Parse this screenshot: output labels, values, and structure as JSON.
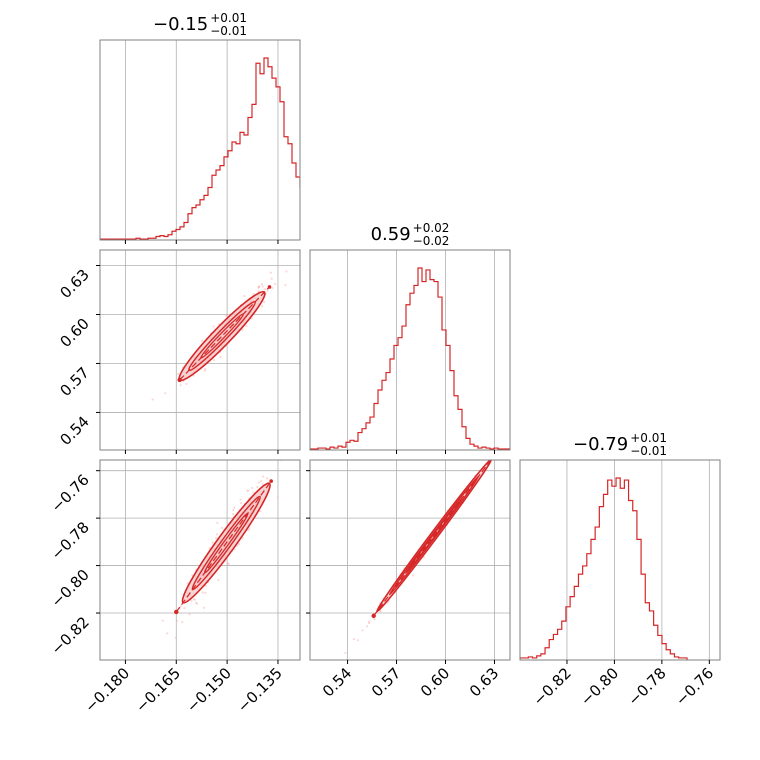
{
  "colors": {
    "main": "#d62728",
    "fill": "#f4c2c2",
    "scatter": "#f7b6b6",
    "grid": "#b0b0b0",
    "frame": "#808080"
  },
  "titles": [
    {
      "main": "−0.15",
      "sup": "+0.01",
      "sub": "−0.01"
    },
    {
      "main": "0.59",
      "sup": "+0.02",
      "sub": "−0.02"
    },
    {
      "main": "−0.79",
      "sup": "+0.01",
      "sub": "−0.01"
    }
  ],
  "chart_data": [
    {
      "type": "corner",
      "parameters": [
        "p0",
        "p1",
        "p2"
      ],
      "ranges": [
        [
          -0.1875,
          -0.1285
        ],
        [
          0.517,
          0.6395
        ],
        [
          -0.8398,
          -0.7555
        ]
      ],
      "ticks": {
        "p0": {
          "values": [
            -0.18,
            -0.165,
            -0.15,
            -0.135
          ],
          "labels": [
            "−0.180",
            "−0.165",
            "−0.150",
            "−0.135"
          ]
        },
        "p1": {
          "values": [
            0.54,
            0.57,
            0.6,
            0.63
          ],
          "labels": [
            "0.54",
            "0.57",
            "0.60",
            "0.63"
          ]
        },
        "p2": {
          "values": [
            -0.82,
            -0.8,
            -0.78,
            -0.76
          ],
          "labels": [
            "−0.82",
            "−0.80",
            "−0.78",
            "−0.76"
          ]
        }
      },
      "median": [
        -0.15,
        0.59,
        -0.79
      ],
      "grid": true
    },
    {
      "type": "histogram",
      "parameter": "p0",
      "title": "−0.15 +0.01 −0.01",
      "bin_start": -0.1875,
      "bin_width": 0.00118,
      "counts": [
        1,
        1,
        1,
        1,
        1,
        1,
        1,
        1,
        1,
        2,
        1,
        1,
        2,
        2,
        4,
        5,
        4,
        6,
        10,
        12,
        15,
        20,
        30,
        37,
        40,
        46,
        51,
        60,
        74,
        80,
        85,
        95,
        102,
        112,
        110,
        123,
        120,
        140,
        155,
        202,
        190,
        208,
        198,
        185,
        175,
        158,
        118,
        110,
        88,
        72,
        60,
        48,
        36,
        24,
        18,
        15,
        9,
        6,
        4,
        2
      ]
    },
    {
      "type": "histogram",
      "parameter": "p1",
      "title": "0.59 +0.02 −0.02",
      "bin_start": 0.517,
      "bin_width": 0.00245,
      "counts": [
        1,
        1,
        2,
        2,
        1,
        3,
        2,
        4,
        3,
        8,
        10,
        9,
        18,
        22,
        28,
        34,
        48,
        62,
        72,
        80,
        94,
        108,
        116,
        128,
        150,
        162,
        170,
        188,
        174,
        186,
        176,
        174,
        158,
        124,
        108,
        82,
        56,
        42,
        24,
        12,
        6,
        4,
        2,
        3,
        2,
        1,
        2,
        1,
        1,
        1
      ]
    },
    {
      "type": "histogram",
      "parameter": "p2",
      "title": "−0.79 +0.01 −0.01",
      "bin_start": -0.8398,
      "bin_width": 0.00176,
      "counts": [
        2,
        2,
        3,
        2,
        4,
        6,
        12,
        20,
        25,
        30,
        38,
        52,
        62,
        72,
        84,
        92,
        104,
        118,
        130,
        150,
        162,
        176,
        170,
        178,
        168,
        176,
        156,
        146,
        118,
        84,
        56,
        48,
        34,
        24,
        16,
        10,
        6,
        3,
        2,
        2
      ]
    },
    {
      "type": "scatter-contour",
      "x_parameter": "p0",
      "y_parameter": "p1",
      "slope": 2.15,
      "intercept": 0.9125,
      "spread": 0.0045,
      "contour_x_range": [
        -0.164,
        -0.139
      ],
      "core_x_range": [
        -0.164,
        -0.1375
      ]
    },
    {
      "type": "scatter-contour",
      "x_parameter": "p0",
      "y_parameter": "p2",
      "slope": 1.97,
      "intercept": -0.4945,
      "spread": 0.0042,
      "contour_x_range": [
        -0.163,
        -0.1375
      ],
      "core_x_range": [
        -0.165,
        -0.137
      ]
    },
    {
      "type": "scatter-contour",
      "x_parameter": "p1",
      "y_parameter": "p2",
      "slope": 0.916,
      "intercept": -1.3305,
      "spread": 0.0012,
      "contour_x_range": [
        0.558,
        0.628
      ],
      "core_x_range": [
        0.556,
        0.63
      ]
    }
  ]
}
